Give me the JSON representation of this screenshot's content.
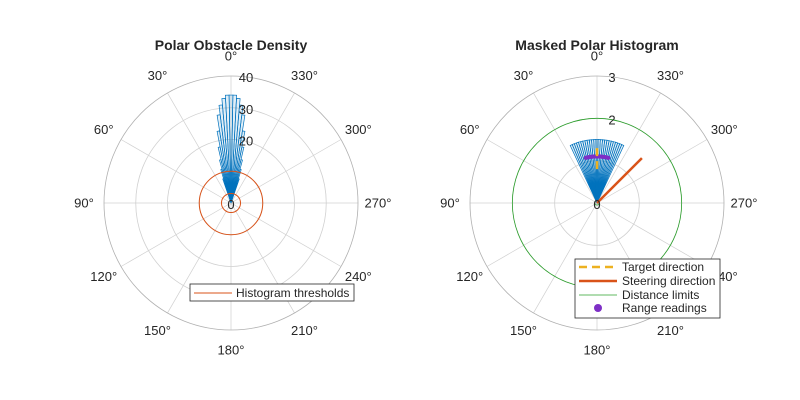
{
  "colors": {
    "grid": "#d0d0d0",
    "outer_ring": "#b0b0b0",
    "histogram": "#0072bd",
    "threshold": "#d95319",
    "target": "#edb120",
    "steering": "#d95319",
    "distance": "#2ca02c",
    "readings": "#7e2fc6"
  },
  "chart_data": [
    {
      "type": "polar-histogram",
      "title": "Polar Obstacle Density",
      "theta_direction": "counterclockwise",
      "theta_zero": "top",
      "theta_ticks": [
        0,
        30,
        60,
        90,
        120,
        150,
        180,
        210,
        240,
        270,
        300,
        330
      ],
      "theta_tick_labels": [
        "0°",
        "30°",
        "60°",
        "90°",
        "120°",
        "150°",
        "180°",
        "210°",
        "240°",
        "270°",
        "300°",
        "330°"
      ],
      "rlim": [
        0,
        40
      ],
      "r_ticks": [
        0,
        10,
        20,
        30,
        40
      ],
      "r_tick_labels": [
        "0",
        "",
        "20",
        "30",
        "40"
      ],
      "bins_deg": [
        -18,
        -16,
        -14,
        -12,
        -10,
        -8,
        -6,
        -4,
        -2,
        0,
        2,
        4,
        6,
        8,
        10,
        12,
        14,
        16,
        18
      ],
      "bin_width_deg": 2,
      "values": [
        8,
        11,
        14,
        18,
        23,
        28,
        31,
        33,
        34,
        34,
        34,
        33,
        31,
        28,
        23,
        18,
        14,
        11,
        8
      ],
      "thresholds": [
        3,
        10
      ],
      "legend": {
        "location": "bottom",
        "entries": [
          "Histogram thresholds"
        ]
      }
    },
    {
      "type": "polar-histogram",
      "title": "Masked Polar Histogram",
      "theta_direction": "counterclockwise",
      "theta_zero": "top",
      "theta_ticks": [
        0,
        30,
        60,
        90,
        120,
        150,
        180,
        210,
        240,
        270,
        300,
        330
      ],
      "theta_tick_labels": [
        "0°",
        "30°",
        "60°",
        "90°",
        "120°",
        "150°",
        "180°",
        "210°",
        "240°",
        "270°",
        "300°",
        "330°"
      ],
      "rlim": [
        0,
        3
      ],
      "r_ticks": [
        0,
        1,
        2,
        3
      ],
      "r_tick_labels": [
        "0",
        "",
        "2",
        "3"
      ],
      "bins_deg": [
        -24,
        -22,
        -20,
        -18,
        -16,
        -14,
        -12,
        -10,
        -8,
        -6,
        -4,
        -2,
        0,
        2,
        4,
        6,
        8,
        10,
        12,
        14,
        16,
        18,
        20,
        22,
        24
      ],
      "bin_width_deg": 2,
      "masked_value": 1.5,
      "target_direction_deg": 0,
      "target_direction_range": [
        0.8,
        1.3
      ],
      "steering_direction_deg": -45,
      "steering_length": 1.5,
      "distance_limits": [
        0.05,
        2
      ],
      "range_readings": {
        "from_deg": -14,
        "to_deg": 14,
        "r": 1.1
      },
      "legend": {
        "location": "bottom-right",
        "entries": [
          "Target direction",
          "Steering direction",
          "Distance limits",
          "Range readings"
        ]
      }
    }
  ]
}
